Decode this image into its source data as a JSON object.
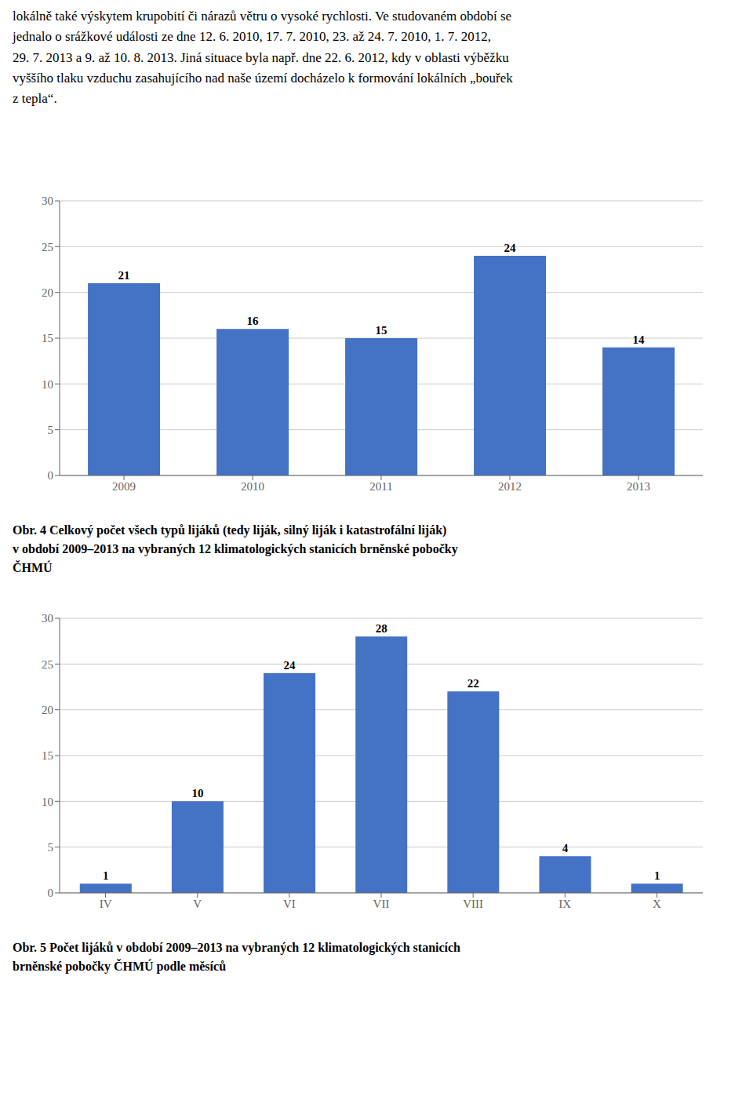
{
  "chart_data": [
    {
      "type": "bar",
      "annotations": [
        "lokálně také výskytem krupobití či nárazů větru o vysoké rychlosti. Ve studovaném období se",
        "jednalo o srážkové události ze dne 12. 6. 2010, 17. 7. 2010, 23. až 24. 7. 2010, 1. 7. 2012,",
        "29. 7. 2013 a 9. až 10. 8. 2013. Jiná situace byla např. dne 22. 6. 2012, kdy v oblasti výběžku",
        "vyššího tlaku vzduchu zasahujícího nad naše území docházelo k formování lokálních „bouřek",
        "z tepla“."
      ],
      "title": [
        "Obr. 4 Celkový počet všech typů lijáků (tedy liják, silný liják i katastrofální liják)",
        "v období 2009–2013 na vybraných 12 klimatologických stanicích brněnské pobočky",
        "ČHMÚ"
      ],
      "categories": [
        "2009",
        "2010",
        "2011",
        "2012",
        "2013"
      ],
      "values": [
        21,
        16,
        15,
        24,
        14
      ],
      "color": "#4472c4",
      "ylim": [
        0,
        30
      ],
      "yticks": [
        0,
        5,
        10,
        15,
        20,
        25,
        30
      ],
      "grid": true,
      "data_labels": true
    },
    {
      "type": "bar",
      "title": [
        "Obr. 5 Počet lijáků v období 2009–2013 na vybraných 12 klimatologických stanicích",
        "brněnské pobočky ČHMÚ podle měsíců"
      ],
      "categories": [
        "IV",
        "V",
        "VI",
        "VII",
        "VIII",
        "IX",
        "X"
      ],
      "values": [
        1,
        10,
        24,
        28,
        22,
        4,
        1
      ],
      "color": "#4472c4",
      "ylim": [
        0,
        30
      ],
      "yticks": [
        0,
        5,
        10,
        15,
        20,
        25,
        30
      ],
      "grid": true,
      "data_labels": true
    }
  ]
}
